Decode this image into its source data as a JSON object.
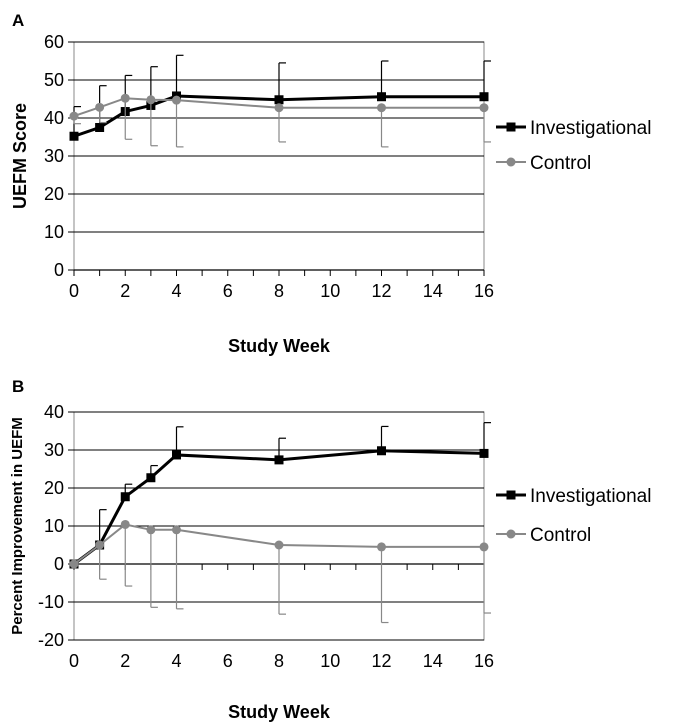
{
  "chart_data": [
    {
      "panel": "A",
      "type": "line",
      "ylabel": "UEFM Score",
      "xlabel": "Study Week",
      "ylim": [
        0,
        60
      ],
      "yticks": [
        0,
        10,
        20,
        30,
        40,
        50,
        60
      ],
      "xlim": [
        0,
        16
      ],
      "xticks": [
        0,
        2,
        4,
        6,
        8,
        10,
        12,
        14,
        16
      ],
      "grid": "horizontal",
      "legend": "right",
      "series": [
        {
          "name": "Investigational",
          "color": "#000000",
          "marker": "square",
          "x": [
            0,
            1,
            2,
            3,
            4,
            8,
            12,
            16
          ],
          "y": [
            35.2,
            37.5,
            41.7,
            43.3,
            45.8,
            44.8,
            45.6,
            45.6
          ],
          "err_upper": [
            43,
            48.5,
            51.2,
            53.5,
            56.5,
            54.5,
            55.0,
            55.0
          ]
        },
        {
          "name": "Control",
          "color": "#888888",
          "marker": "circle",
          "x": [
            0,
            1,
            2,
            3,
            4,
            8,
            12,
            16
          ],
          "y": [
            40.5,
            42.8,
            45.2,
            44.8,
            44.7,
            42.7,
            42.7,
            42.7
          ],
          "err_lower": [
            38.5,
            38.8,
            34.4,
            32.7,
            32.4,
            33.7,
            32.4,
            33.7
          ]
        }
      ]
    },
    {
      "panel": "B",
      "type": "line",
      "ylabel": "Percent Improvement in UEFM",
      "xlabel": "Study Week",
      "ylim": [
        -20,
        40
      ],
      "yticks": [
        -20,
        -10,
        0,
        10,
        20,
        30,
        40
      ],
      "xlim": [
        0,
        16
      ],
      "xticks": [
        0,
        2,
        4,
        6,
        8,
        10,
        12,
        14,
        16
      ],
      "grid": "horizontal",
      "legend": "right",
      "series": [
        {
          "name": "Investigational",
          "color": "#000000",
          "marker": "square",
          "x": [
            0,
            1,
            2,
            3,
            4,
            8,
            12,
            16
          ],
          "y": [
            0,
            5,
            17.7,
            22.7,
            28.7,
            27.4,
            29.8,
            29.1
          ],
          "err_upper": [
            0,
            14.3,
            21,
            25.9,
            36.1,
            33.1,
            36.2,
            37.2
          ]
        },
        {
          "name": "Control",
          "color": "#888888",
          "marker": "circle",
          "x": [
            0,
            1,
            2,
            3,
            4,
            8,
            12,
            16
          ],
          "y": [
            0,
            5,
            10.4,
            9,
            9,
            5,
            4.5,
            4.5
          ],
          "err_lower": [
            0,
            -4,
            -5.8,
            -11.4,
            -11.8,
            -13.2,
            -15.4,
            -12.9
          ]
        }
      ]
    }
  ]
}
